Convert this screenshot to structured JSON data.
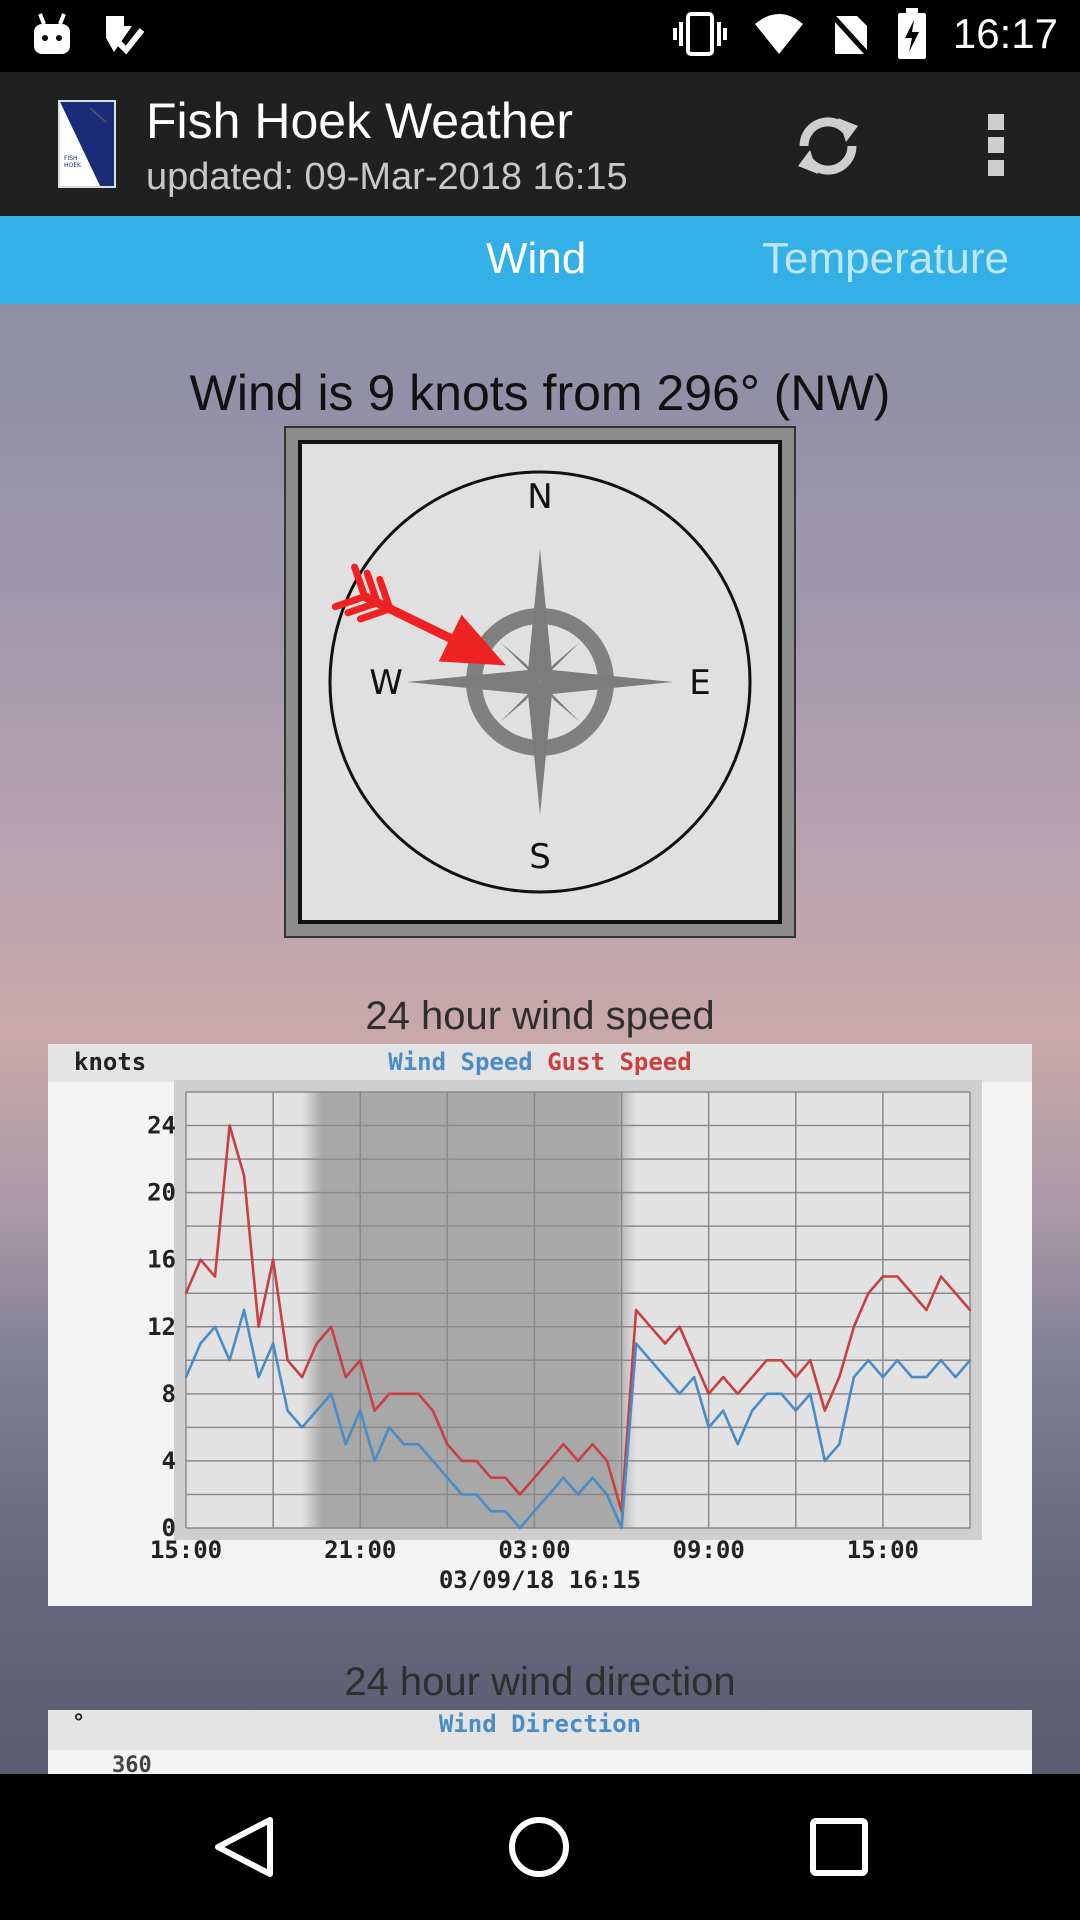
{
  "status_bar": {
    "time": "16:17",
    "left_icons": [
      "android-icon",
      "task-check-icon"
    ],
    "right_icons": [
      "vibrate-icon",
      "wifi-icon",
      "no-sim-icon",
      "battery-charging-icon"
    ]
  },
  "app_bar": {
    "title": "Fish Hoek Weather",
    "subtitle": "updated: 09-Mar-2018 16:15",
    "actions": [
      "refresh-icon",
      "overflow-menu-icon"
    ]
  },
  "tabs": [
    {
      "label": "Wind",
      "selected": true
    },
    {
      "label": "Temperature",
      "selected": false
    }
  ],
  "wind": {
    "summary": "Wind is 9 knots from 296° (NW)",
    "direction_deg": 296,
    "compass_labels": {
      "n": "N",
      "e": "E",
      "s": "S",
      "w": "W"
    }
  },
  "speed_chart": {
    "section_title": "24 hour wind speed",
    "unit_label": "knots",
    "legend": [
      {
        "name": "Wind Speed",
        "color": "#4a8cc8"
      },
      {
        "name": "Gust Speed",
        "color": "#c84040"
      }
    ],
    "timestamp": "03/09/18 16:15"
  },
  "direction_chart": {
    "section_title": "24 hour wind direction",
    "unit_label": "°",
    "legend_title": "Wind Direction",
    "top_tick": "360"
  },
  "chart_data": {
    "type": "line",
    "title": "Wind Speed Gust Speed",
    "ylabel": "knots",
    "ylim": [
      0,
      26
    ],
    "yticks": [
      "0",
      "4",
      "8",
      "12",
      "16",
      "20",
      "24"
    ],
    "xticks": [
      "15:00",
      "21:00",
      "03:00",
      "09:00",
      "15:00"
    ],
    "xlim": [
      0,
      27
    ],
    "shaded_x": [
      4,
      15.5
    ],
    "x": [
      0,
      0.5,
      1,
      1.5,
      2,
      2.5,
      3,
      3.5,
      4,
      4.5,
      5,
      5.5,
      6,
      6.5,
      7,
      7.5,
      8,
      8.5,
      9,
      9.5,
      10,
      10.5,
      11,
      11.5,
      12,
      12.5,
      13,
      13.5,
      14,
      14.5,
      15,
      15.5,
      16,
      16.5,
      17,
      17.5,
      18,
      18.5,
      19,
      19.5,
      20,
      20.5,
      21,
      21.5,
      22,
      22.5,
      23,
      23.5,
      24,
      24.5,
      25,
      25.5,
      26,
      26.5,
      27
    ],
    "series": [
      {
        "name": "Wind Speed",
        "color": "#4a8cc8",
        "values": [
          9,
          11,
          12,
          10,
          13,
          9,
          11,
          7,
          6,
          7,
          8,
          5,
          7,
          4,
          6,
          5,
          5,
          4,
          3,
          2,
          2,
          1,
          1,
          0,
          1,
          2,
          3,
          2,
          3,
          2,
          0,
          11,
          10,
          9,
          8,
          9,
          6,
          7,
          5,
          7,
          8,
          8,
          7,
          8,
          4,
          5,
          9,
          10,
          9,
          10,
          9,
          9,
          10,
          9,
          10
        ]
      },
      {
        "name": "Gust Speed",
        "color": "#c84040",
        "values": [
          14,
          16,
          15,
          24,
          21,
          12,
          16,
          10,
          9,
          11,
          12,
          9,
          10,
          7,
          8,
          8,
          8,
          7,
          5,
          4,
          4,
          3,
          3,
          2,
          3,
          4,
          5,
          4,
          5,
          4,
          1,
          13,
          12,
          11,
          12,
          10,
          8,
          9,
          8,
          9,
          10,
          10,
          9,
          10,
          7,
          9,
          12,
          14,
          15,
          15,
          14,
          13,
          15,
          14,
          13
        ]
      }
    ]
  }
}
